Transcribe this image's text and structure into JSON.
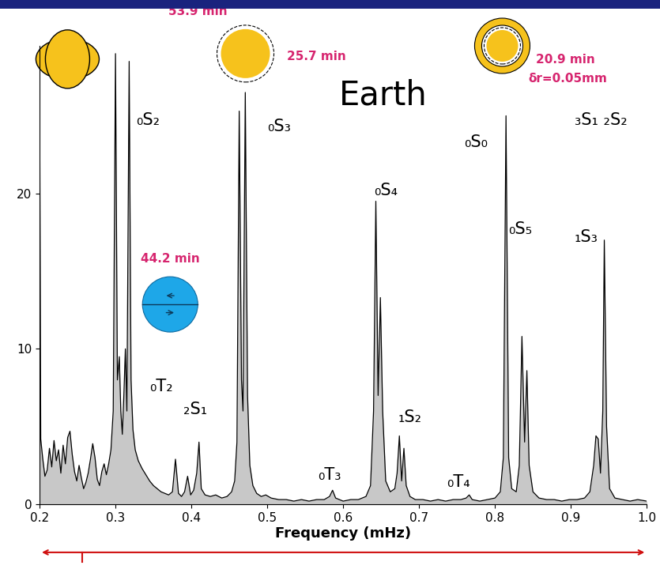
{
  "chart_data": {
    "type": "line",
    "title": "Earth",
    "xlabel": "Frequency (mHz)",
    "color": "#000000",
    "xlim": [
      0.2,
      1.0
    ],
    "ylim": [
      0,
      29.5
    ],
    "xticks": [
      0.2,
      0.3,
      0.4,
      0.5,
      0.6,
      0.7,
      0.8,
      0.9,
      1.0
    ],
    "yticks": [
      0,
      10,
      20
    ],
    "annotations": [
      "₀S₂",
      "₀S₃",
      "₀S₄",
      "₀S₀",
      "₀S₅",
      "₃S₁ ₂S₂",
      "₁S₃",
      "₁S₂",
      "₀T₂",
      "₂S₁",
      "₀T₃",
      "₀T₄",
      "53.9 min",
      "25.7 min",
      "44.2 min",
      "20.9 min",
      "δr=0.05mm"
    ],
    "x": [
      0.2,
      0.2015,
      0.204,
      0.207,
      0.21,
      0.213,
      0.216,
      0.219,
      0.222,
      0.225,
      0.228,
      0.231,
      0.234,
      0.237,
      0.24,
      0.243,
      0.246,
      0.249,
      0.252,
      0.255,
      0.258,
      0.261,
      0.264,
      0.267,
      0.27,
      0.273,
      0.276,
      0.279,
      0.282,
      0.285,
      0.288,
      0.291,
      0.294,
      0.297,
      0.3,
      0.3025,
      0.305,
      0.307,
      0.309,
      0.311,
      0.313,
      0.315,
      0.318,
      0.3205,
      0.323,
      0.326,
      0.33,
      0.335,
      0.34,
      0.345,
      0.35,
      0.355,
      0.36,
      0.365,
      0.37,
      0.375,
      0.379,
      0.383,
      0.387,
      0.391,
      0.395,
      0.399,
      0.403,
      0.407,
      0.41,
      0.413,
      0.418,
      0.425,
      0.432,
      0.44,
      0.447,
      0.453,
      0.457,
      0.46,
      0.463,
      0.466,
      0.468,
      0.471,
      0.474,
      0.477,
      0.481,
      0.486,
      0.492,
      0.498,
      0.505,
      0.515,
      0.525,
      0.535,
      0.545,
      0.555,
      0.565,
      0.575,
      0.582,
      0.586,
      0.59,
      0.6,
      0.61,
      0.62,
      0.63,
      0.636,
      0.64,
      0.643,
      0.646,
      0.649,
      0.652,
      0.656,
      0.662,
      0.668,
      0.671,
      0.674,
      0.677,
      0.68,
      0.683,
      0.688,
      0.695,
      0.705,
      0.715,
      0.725,
      0.735,
      0.745,
      0.755,
      0.762,
      0.766,
      0.77,
      0.78,
      0.79,
      0.8,
      0.807,
      0.811,
      0.8145,
      0.818,
      0.822,
      0.828,
      0.832,
      0.8355,
      0.839,
      0.842,
      0.845,
      0.85,
      0.858,
      0.868,
      0.878,
      0.888,
      0.898,
      0.908,
      0.918,
      0.925,
      0.93,
      0.933,
      0.936,
      0.939,
      0.942,
      0.944,
      0.947,
      0.951,
      0.958,
      0.968,
      0.978,
      0.988,
      1.0
    ],
    "values": [
      26.5,
      4.2,
      3.0,
      1.8,
      2.2,
      3.6,
      2.4,
      4.1,
      2.8,
      3.5,
      2.0,
      3.8,
      2.6,
      4.3,
      4.7,
      3.2,
      2.1,
      1.5,
      2.5,
      1.7,
      1.0,
      1.4,
      2.0,
      2.9,
      3.9,
      3.0,
      1.6,
      1.2,
      2.1,
      2.6,
      1.9,
      2.6,
      3.5,
      6.0,
      29.0,
      8.0,
      9.5,
      6.0,
      4.5,
      7.0,
      10.0,
      6.0,
      28.5,
      8.0,
      4.8,
      3.5,
      2.8,
      2.3,
      1.9,
      1.5,
      1.2,
      1.0,
      0.8,
      0.7,
      0.6,
      0.8,
      2.9,
      0.7,
      0.5,
      0.8,
      1.8,
      0.6,
      0.9,
      2.0,
      4.0,
      1.0,
      0.6,
      0.5,
      0.6,
      0.4,
      0.5,
      0.8,
      1.5,
      4.0,
      25.3,
      8.0,
      6.0,
      26.5,
      7.0,
      2.5,
      1.2,
      0.7,
      0.5,
      0.6,
      0.4,
      0.3,
      0.3,
      0.2,
      0.3,
      0.2,
      0.3,
      0.3,
      0.5,
      0.9,
      0.4,
      0.2,
      0.3,
      0.3,
      0.5,
      1.2,
      6.0,
      19.5,
      7.0,
      13.3,
      6.0,
      1.5,
      0.8,
      1.0,
      2.0,
      4.4,
      1.5,
      3.6,
      1.2,
      0.5,
      0.3,
      0.3,
      0.2,
      0.3,
      0.2,
      0.3,
      0.3,
      0.4,
      0.6,
      0.3,
      0.2,
      0.3,
      0.4,
      0.8,
      3.0,
      25.0,
      3.0,
      1.0,
      0.8,
      2.5,
      10.8,
      4.0,
      8.6,
      2.5,
      0.8,
      0.4,
      0.3,
      0.3,
      0.2,
      0.3,
      0.3,
      0.4,
      0.8,
      2.5,
      4.4,
      4.2,
      2.0,
      6.0,
      17.0,
      5.0,
      1.0,
      0.4,
      0.3,
      0.2,
      0.3,
      0.2
    ]
  }
}
